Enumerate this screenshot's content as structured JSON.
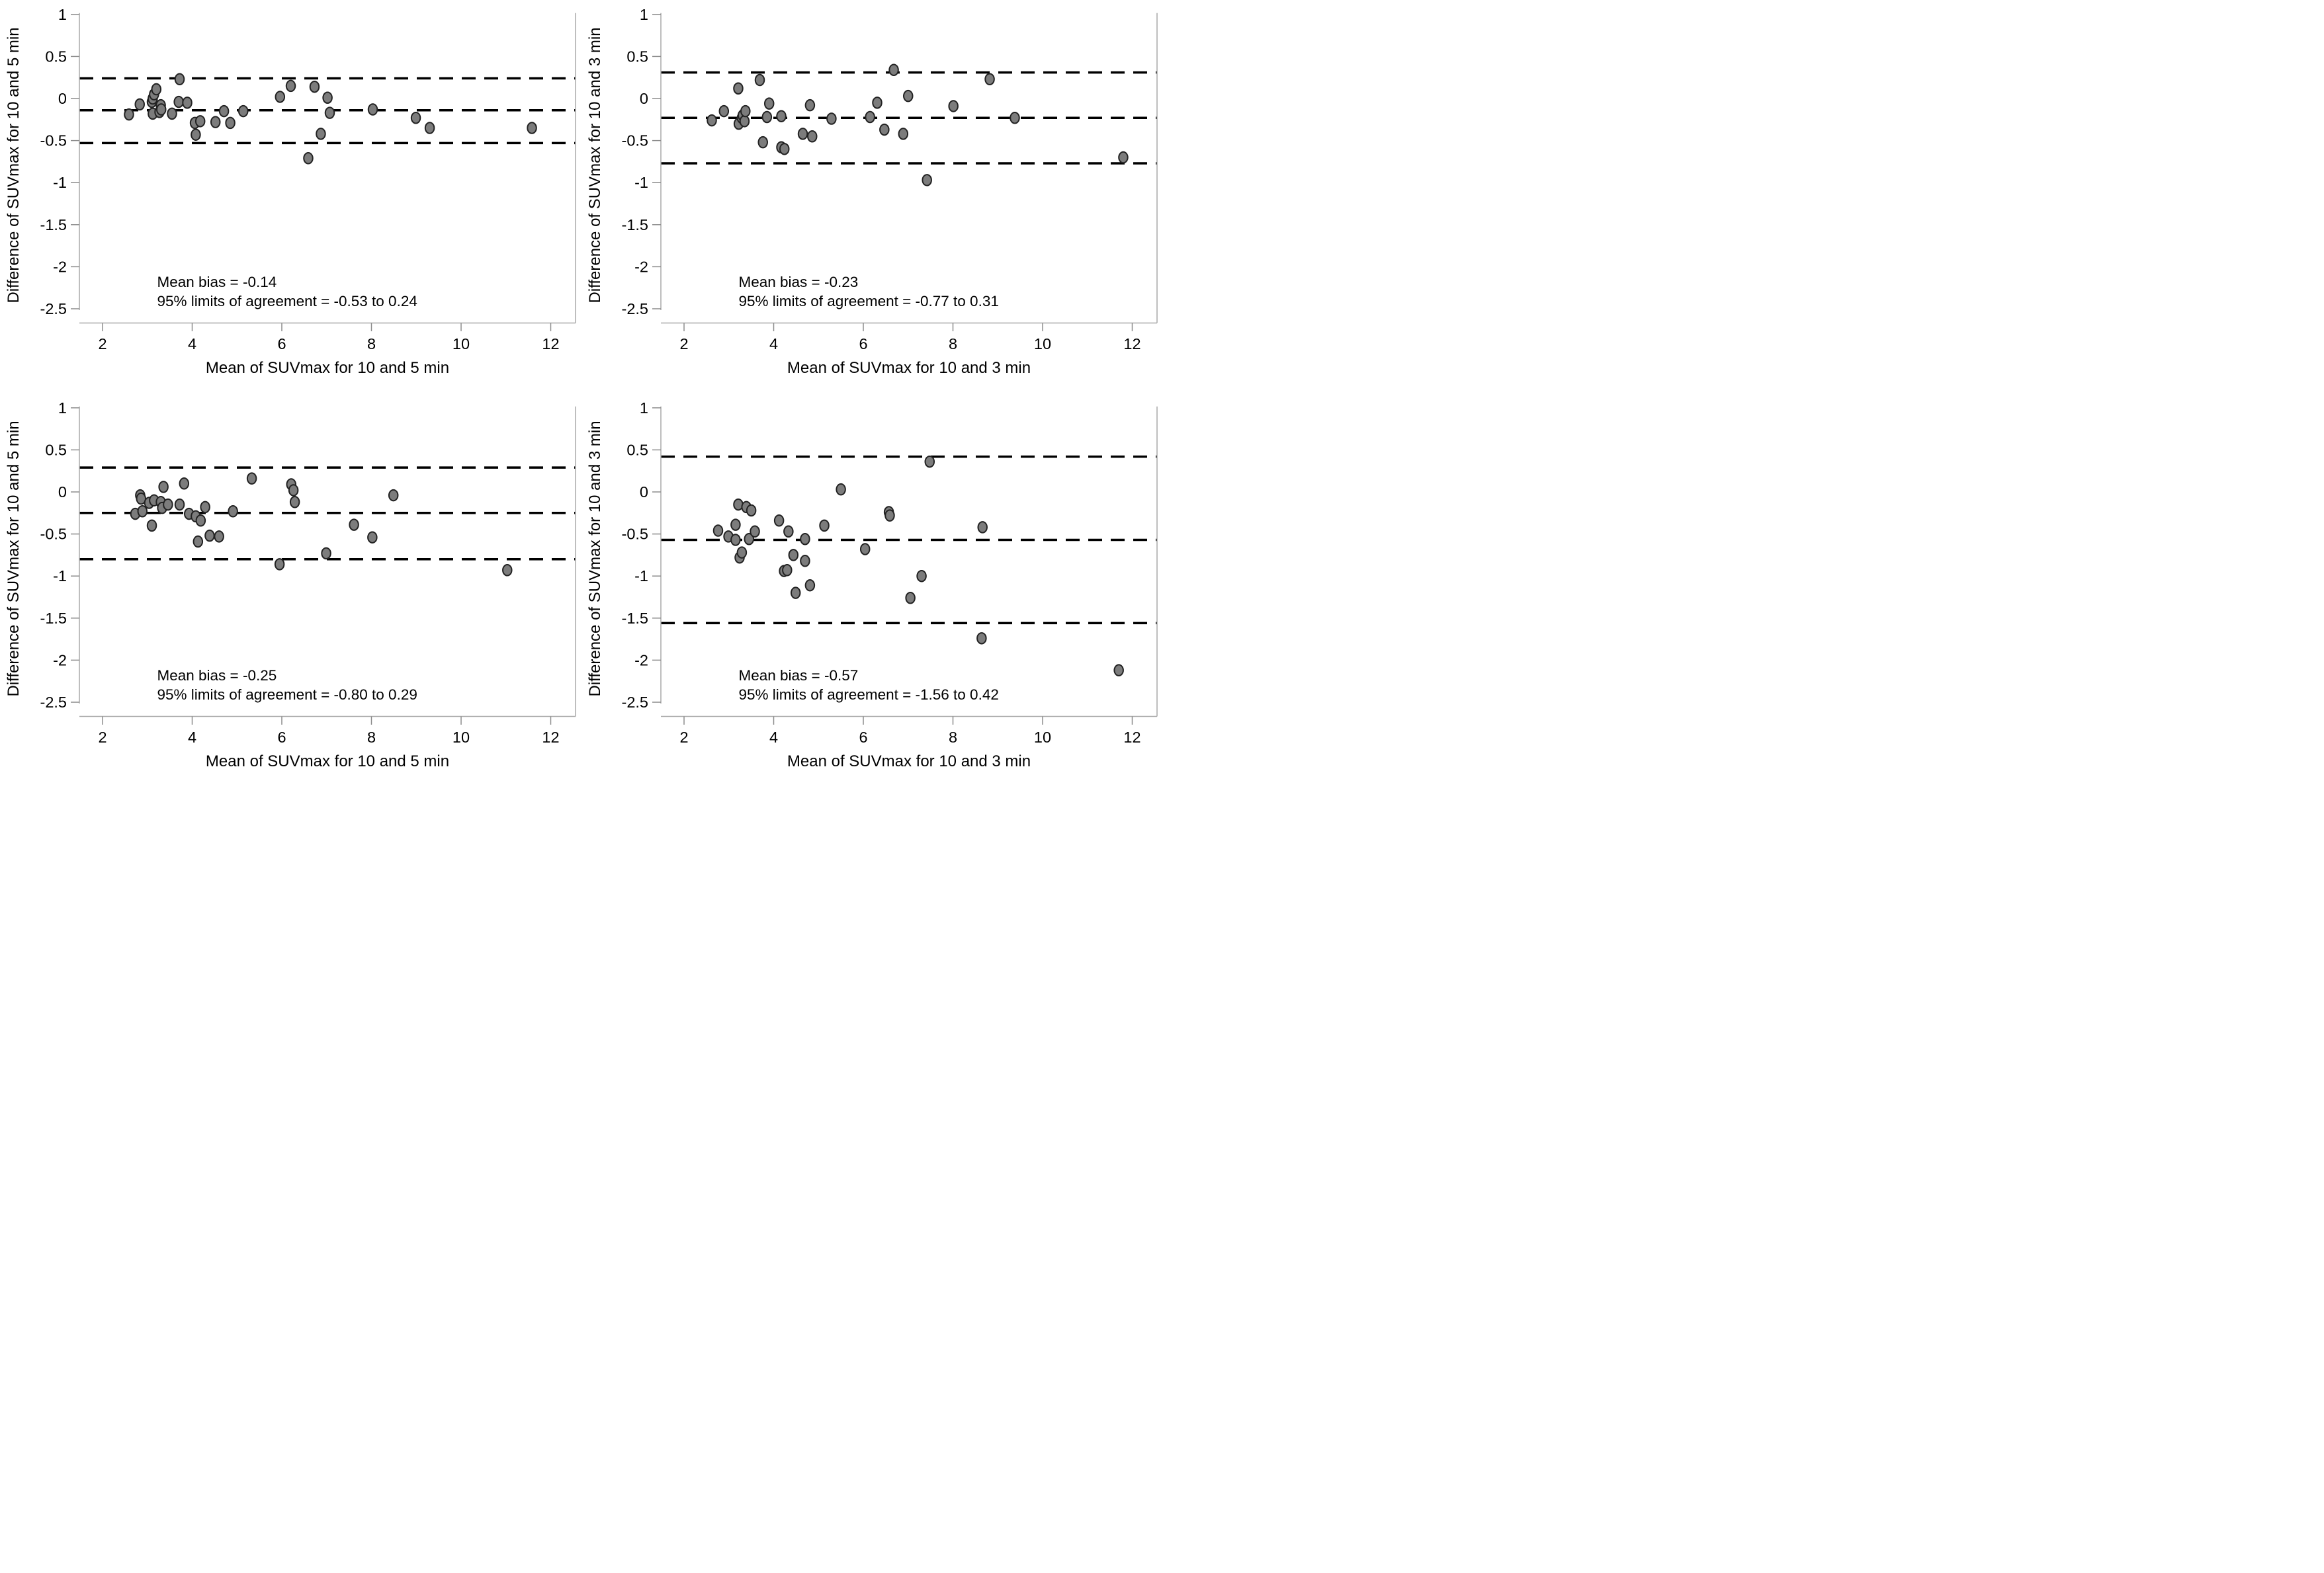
{
  "figure": {
    "background": "#ffffff",
    "point_fill": "#7c7c7c",
    "point_stroke": "#222222",
    "dash_color": "#000000",
    "axis_color": "#a8a8a8",
    "tick_color": "#8c8c8c",
    "text_color": "#000000"
  },
  "chart_data": [
    {
      "type": "scatter",
      "id": "top-left",
      "xlabel": "Mean of SUVmax for 10 and 5 min",
      "ylabel": "Difference of SUVmax for 10 and 5 min",
      "annotation_line1": "Mean bias = -0.14",
      "annotation_line2": "95% limits of agreement = -0.53 to 0.24",
      "mean_bias": -0.14,
      "loa_lower": -0.53,
      "loa_upper": 0.24,
      "xlim": [
        1.5,
        12.6
      ],
      "ylim": [
        -2.5,
        1
      ],
      "grid": false,
      "x_ticks": [
        "2",
        "4",
        "6",
        "8",
        "10",
        "12"
      ],
      "y_ticks": [
        "1",
        "0.5",
        "0",
        "-0.5",
        "-1",
        "-1.5",
        "-2",
        "-2.5"
      ],
      "points": [
        [
          2.59,
          -0.19
        ],
        [
          2.83,
          -0.07
        ],
        [
          3.1,
          -0.04
        ],
        [
          3.12,
          0.0
        ],
        [
          3.15,
          0.05
        ],
        [
          3.2,
          0.11
        ],
        [
          3.12,
          -0.18
        ],
        [
          3.27,
          -0.16
        ],
        [
          3.3,
          -0.08
        ],
        [
          3.31,
          -0.13
        ],
        [
          3.55,
          -0.18
        ],
        [
          3.7,
          -0.04
        ],
        [
          3.72,
          0.23
        ],
        [
          3.89,
          -0.05
        ],
        [
          4.06,
          -0.29
        ],
        [
          4.08,
          -0.43
        ],
        [
          4.18,
          -0.27
        ],
        [
          4.52,
          -0.28
        ],
        [
          4.71,
          -0.15
        ],
        [
          4.85,
          -0.29
        ],
        [
          5.14,
          -0.15
        ],
        [
          5.96,
          0.02
        ],
        [
          6.2,
          0.15
        ],
        [
          6.59,
          -0.71
        ],
        [
          6.73,
          0.14
        ],
        [
          6.87,
          -0.42
        ],
        [
          7.02,
          0.01
        ],
        [
          7.07,
          -0.17
        ],
        [
          8.03,
          -0.13
        ],
        [
          8.99,
          -0.23
        ],
        [
          9.3,
          -0.35
        ],
        [
          11.58,
          -0.35
        ]
      ]
    },
    {
      "type": "scatter",
      "id": "top-right",
      "xlabel": "Mean of SUVmax for 10 and 3 min",
      "ylabel": "Difference of SUVmax for 10 and 3 min",
      "annotation_line1": "Mean bias = -0.23",
      "annotation_line2": "95% limits of agreement = -0.77 to 0.31",
      "mean_bias": -0.23,
      "loa_lower": -0.77,
      "loa_upper": 0.31,
      "xlim": [
        1.5,
        12.6
      ],
      "ylim": [
        -2.5,
        1
      ],
      "grid": false,
      "x_ticks": [
        "2",
        "4",
        "6",
        "8",
        "10",
        "12"
      ],
      "y_ticks": [
        "1",
        "0.5",
        "0",
        "-0.5",
        "-1",
        "-1.5",
        "-2",
        "-2.5"
      ],
      "points": [
        [
          2.62,
          -0.26
        ],
        [
          2.89,
          -0.15
        ],
        [
          3.21,
          0.12
        ],
        [
          3.22,
          -0.3
        ],
        [
          3.29,
          -0.23
        ],
        [
          3.31,
          -0.2
        ],
        [
          3.35,
          -0.27
        ],
        [
          3.37,
          -0.15
        ],
        [
          3.69,
          0.22
        ],
        [
          3.76,
          -0.52
        ],
        [
          3.85,
          -0.22
        ],
        [
          3.9,
          -0.06
        ],
        [
          4.17,
          -0.21
        ],
        [
          4.17,
          -0.58
        ],
        [
          4.24,
          -0.6
        ],
        [
          4.65,
          -0.42
        ],
        [
          4.81,
          -0.08
        ],
        [
          4.86,
          -0.45
        ],
        [
          5.29,
          -0.24
        ],
        [
          6.15,
          -0.22
        ],
        [
          6.31,
          -0.05
        ],
        [
          6.47,
          -0.37
        ],
        [
          6.68,
          0.34
        ],
        [
          6.89,
          -0.42
        ],
        [
          7.0,
          0.03
        ],
        [
          7.42,
          -0.97
        ],
        [
          8.01,
          -0.09
        ],
        [
          8.82,
          0.23
        ],
        [
          9.38,
          -0.23
        ],
        [
          11.8,
          -0.7
        ]
      ]
    },
    {
      "type": "scatter",
      "id": "bottom-left",
      "xlabel": "Mean of SUVmax for 10 and 5 min",
      "ylabel": "Difference of SUVmax for 10 and 5 min",
      "annotation_line1": "Mean bias = -0.25",
      "annotation_line2": "95% limits of agreement = -0.80 to 0.29",
      "mean_bias": -0.25,
      "loa_lower": -0.8,
      "loa_upper": 0.29,
      "xlim": [
        1.5,
        12.6
      ],
      "ylim": [
        -2.5,
        1
      ],
      "grid": false,
      "x_ticks": [
        "2",
        "4",
        "6",
        "8",
        "10",
        "12"
      ],
      "y_ticks": [
        "1",
        "0.5",
        "0",
        "-0.5",
        "-1",
        "-1.5",
        "-2",
        "-2.5"
      ],
      "points": [
        [
          2.73,
          -0.26
        ],
        [
          2.84,
          -0.04
        ],
        [
          2.86,
          -0.08
        ],
        [
          2.89,
          -0.23
        ],
        [
          3.04,
          -0.13
        ],
        [
          3.1,
          -0.4
        ],
        [
          3.15,
          -0.1
        ],
        [
          3.3,
          -0.12
        ],
        [
          3.33,
          -0.19
        ],
        [
          3.36,
          0.06
        ],
        [
          3.46,
          -0.15
        ],
        [
          3.72,
          -0.15
        ],
        [
          3.82,
          0.1
        ],
        [
          3.93,
          -0.26
        ],
        [
          4.08,
          -0.29
        ],
        [
          4.13,
          -0.59
        ],
        [
          4.19,
          -0.34
        ],
        [
          4.29,
          -0.18
        ],
        [
          4.39,
          -0.52
        ],
        [
          4.6,
          -0.53
        ],
        [
          4.91,
          -0.23
        ],
        [
          5.33,
          0.16
        ],
        [
          5.95,
          -0.86
        ],
        [
          6.21,
          0.09
        ],
        [
          6.26,
          0.02
        ],
        [
          6.29,
          -0.12
        ],
        [
          6.99,
          -0.73
        ],
        [
          7.61,
          -0.39
        ],
        [
          8.02,
          -0.54
        ],
        [
          8.49,
          -0.04
        ],
        [
          11.03,
          -0.93
        ]
      ]
    },
    {
      "type": "scatter",
      "id": "bottom-right",
      "xlabel": "Mean of SUVmax for 10 and 3 min",
      "ylabel": "Difference of SUVmax for 10 and 3 min",
      "annotation_line1": "Mean bias = -0.57",
      "annotation_line2": "95% limits of agreement = -1.56 to 0.42",
      "mean_bias": -0.57,
      "loa_lower": -1.56,
      "loa_upper": 0.42,
      "xlim": [
        1.5,
        12.6
      ],
      "ylim": [
        -2.5,
        1
      ],
      "grid": false,
      "x_ticks": [
        "2",
        "4",
        "6",
        "8",
        "10",
        "12"
      ],
      "y_ticks": [
        "1",
        "0.5",
        "0",
        "-0.5",
        "-1",
        "-1.5",
        "-2",
        "-2.5"
      ],
      "points": [
        [
          2.76,
          -0.46
        ],
        [
          2.99,
          -0.53
        ],
        [
          3.15,
          -0.39
        ],
        [
          3.15,
          -0.57
        ],
        [
          3.21,
          -0.15
        ],
        [
          3.24,
          -0.78
        ],
        [
          3.29,
          -0.72
        ],
        [
          3.39,
          -0.18
        ],
        [
          3.45,
          -0.56
        ],
        [
          3.5,
          -0.22
        ],
        [
          3.58,
          -0.47
        ],
        [
          4.12,
          -0.34
        ],
        [
          4.23,
          -0.94
        ],
        [
          4.3,
          -0.93
        ],
        [
          4.33,
          -0.47
        ],
        [
          4.44,
          -0.75
        ],
        [
          4.49,
          -1.2
        ],
        [
          4.7,
          -0.56
        ],
        [
          4.7,
          -0.82
        ],
        [
          4.81,
          -1.11
        ],
        [
          5.13,
          -0.4
        ],
        [
          5.5,
          0.03
        ],
        [
          6.04,
          -0.68
        ],
        [
          6.57,
          -0.24
        ],
        [
          6.59,
          -0.28
        ],
        [
          7.05,
          -1.26
        ],
        [
          7.3,
          -1.0
        ],
        [
          7.48,
          0.36
        ],
        [
          8.64,
          -1.74
        ],
        [
          8.66,
          -0.42
        ],
        [
          11.7,
          -2.12
        ]
      ]
    }
  ]
}
